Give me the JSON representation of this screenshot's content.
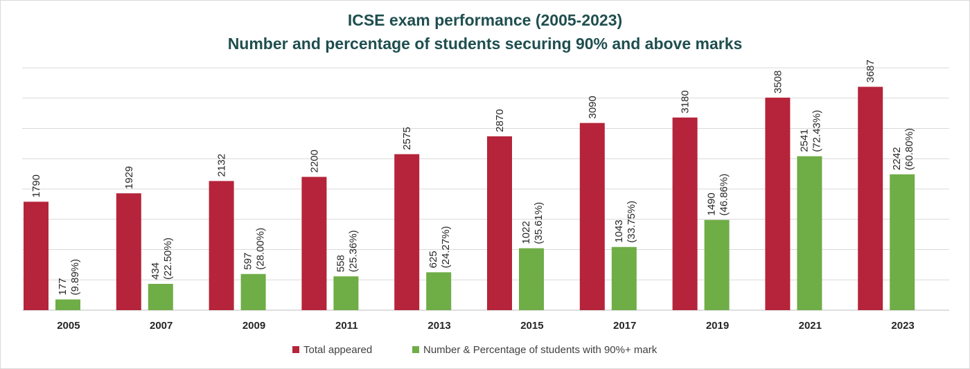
{
  "chart_data": {
    "type": "bar",
    "title": "ICSE exam performance (2005-2023)",
    "subtitle": "Number and percentage of students securing 90% and above marks",
    "categories": [
      "2005",
      "2007",
      "2009",
      "2011",
      "2013",
      "2015",
      "2017",
      "2019",
      "2021",
      "2023"
    ],
    "series": [
      {
        "name": "Total appeared",
        "color": "#b5243a",
        "values": [
          1790,
          1929,
          2132,
          2200,
          2575,
          2870,
          3090,
          3180,
          3508,
          3687
        ],
        "labels": [
          "1790",
          "1929",
          "2132",
          "2200",
          "2575",
          "2870",
          "3090",
          "3180",
          "3508",
          "3687"
        ]
      },
      {
        "name": "Number & Percentage of students with 90%+ mark",
        "color": "#6fad47",
        "values": [
          177,
          434,
          597,
          558,
          625,
          1022,
          1043,
          1490,
          2541,
          2242
        ],
        "labels": [
          "177",
          "434",
          "597",
          "558",
          "625",
          "1022",
          "1043",
          "1490",
          "2541",
          "2242"
        ],
        "percentages": [
          "(9.89%)",
          "(22.50%)",
          "(28.00%)",
          "(25.36%)",
          "(24.27%)",
          "(35.61%)",
          "(33.75%)",
          "(46.86%)",
          "(72.43%)",
          "(60.80%)"
        ]
      }
    ],
    "ylim": [
      0,
      4000
    ],
    "gridlines_at": [
      500,
      1000,
      1500,
      2000,
      2500,
      3000,
      3500,
      4000
    ],
    "grid": true,
    "y_tick_labels": false,
    "legend_position": "bottom",
    "label_orientation": "vertical"
  }
}
